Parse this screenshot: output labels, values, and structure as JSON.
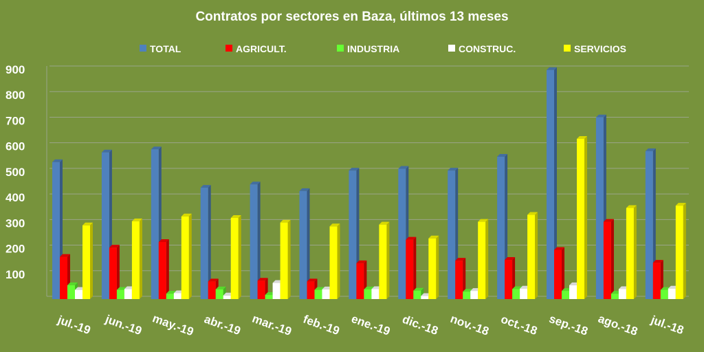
{
  "chart_data": {
    "type": "bar",
    "title": "Contratos por sectores en Baza, últimos 13 meses",
    "categories": [
      "jul.-19",
      "jun.-19",
      "may.-19",
      "abr.-19",
      "mar.-19",
      "feb.-19",
      "ene.-19",
      "dic.-18",
      "nov.-18",
      "oct.-18",
      "sep.-18",
      "ago.-18",
      "jul.-18"
    ],
    "series": [
      {
        "name": "TOTAL",
        "color": "#4f81bd",
        "values": [
          535,
          573,
          585,
          435,
          448,
          422,
          502,
          509,
          502,
          556,
          895,
          710,
          578
        ]
      },
      {
        "name": "AGRICULT.",
        "color": "#ff0000",
        "values": [
          165,
          201,
          223,
          69,
          72,
          69,
          140,
          232,
          150,
          153,
          192,
          302,
          142
        ]
      },
      {
        "name": "INDUSTRIA",
        "color": "#66ff33",
        "values": [
          54,
          36,
          21,
          38,
          16,
          36,
          38,
          33,
          29,
          39,
          32,
          21,
          36
        ]
      },
      {
        "name": "CONSTRUC.",
        "color": "#ffffff",
        "values": [
          36,
          39,
          23,
          14,
          63,
          38,
          39,
          12,
          32,
          41,
          54,
          39,
          41
        ]
      },
      {
        "name": "SERVICIOS",
        "color": "#ffff00",
        "values": [
          288,
          304,
          323,
          317,
          299,
          284,
          291,
          237,
          302,
          329,
          626,
          356,
          365
        ]
      }
    ],
    "yticks": [
      "100",
      "200",
      "300",
      "400",
      "500",
      "600",
      "700",
      "800",
      "900"
    ],
    "ylim": [
      0,
      900
    ],
    "grid": true,
    "legend": "top",
    "xlabel": "",
    "ylabel": ""
  }
}
